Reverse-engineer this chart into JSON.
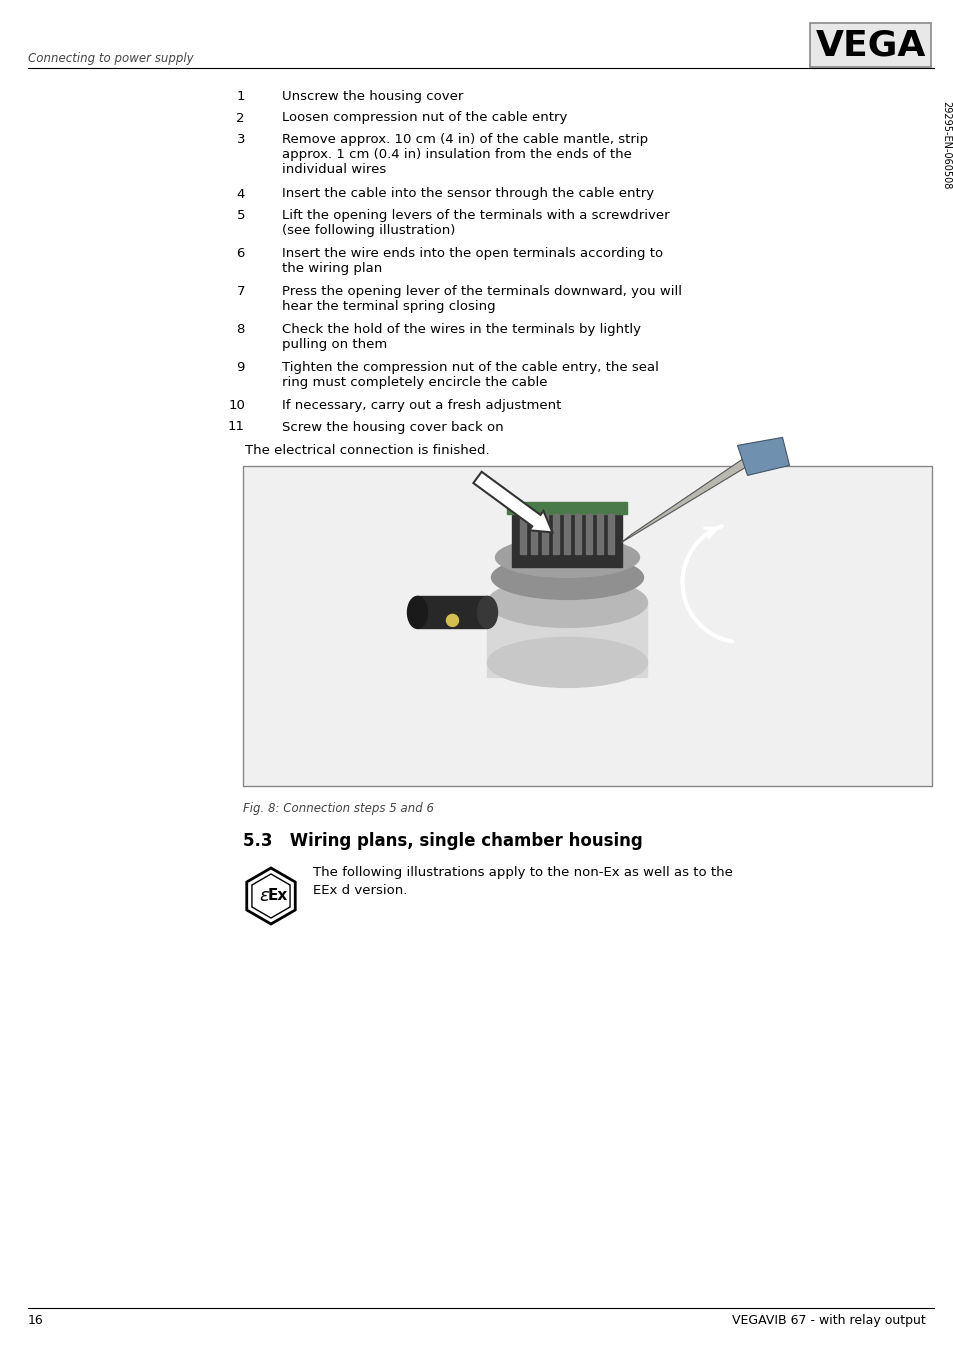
{
  "page_width": 9.54,
  "page_height": 13.52,
  "dpi": 100,
  "background_color": "#ffffff",
  "header_text": "Connecting to power supply",
  "header_font_size": 8.5,
  "logo_text": "VEGA",
  "footer_page_num": "16",
  "footer_right": "VEGAVIB 67 - with relay output",
  "footer_font_size": 9,
  "sidebar_text": "29295-EN-060508",
  "numbered_items": [
    {
      "num": "1",
      "text": "Unscrew the housing cover",
      "lines": 1
    },
    {
      "num": "2",
      "text": "Loosen compression nut of the cable entry",
      "lines": 1
    },
    {
      "num": "3",
      "text": "Remove approx. 10 cm (4 in) of the cable mantle, strip\napprox. 1 cm (0.4 in) insulation from the ends of the\nindividual wires",
      "lines": 3
    },
    {
      "num": "4",
      "text": "Insert the cable into the sensor through the cable entry",
      "lines": 1
    },
    {
      "num": "5",
      "text": "Lift the opening levers of the terminals with a screwdriver\n(see following illustration)",
      "lines": 2
    },
    {
      "num": "6",
      "text": "Insert the wire ends into the open terminals according to\nthe wiring plan",
      "lines": 2
    },
    {
      "num": "7",
      "text": "Press the opening lever of the terminals downward, you will\nhear the terminal spring closing",
      "lines": 2
    },
    {
      "num": "8",
      "text": "Check the hold of the wires in the terminals by lightly\npulling on them",
      "lines": 2
    },
    {
      "num": "9",
      "text": "Tighten the compression nut of the cable entry, the seal\nring must completely encircle the cable",
      "lines": 2
    },
    {
      "num": "10",
      "text": "If necessary, carry out a fresh adjustment",
      "lines": 1
    },
    {
      "num": "11",
      "text": "Screw the housing cover back on",
      "lines": 1
    }
  ],
  "conclusion_text": "The electrical connection is finished.",
  "figure_caption": "Fig. 8: Connection steps 5 and 6",
  "section_title": "5.3   Wiring plans, single chamber housing",
  "section_body_line1": "The following illustrations apply to the non-Ex as well as to the",
  "section_body_line2": "EEx d version.",
  "text_color": "#000000",
  "body_font_size": 9.5,
  "section_title_font_size": 12
}
